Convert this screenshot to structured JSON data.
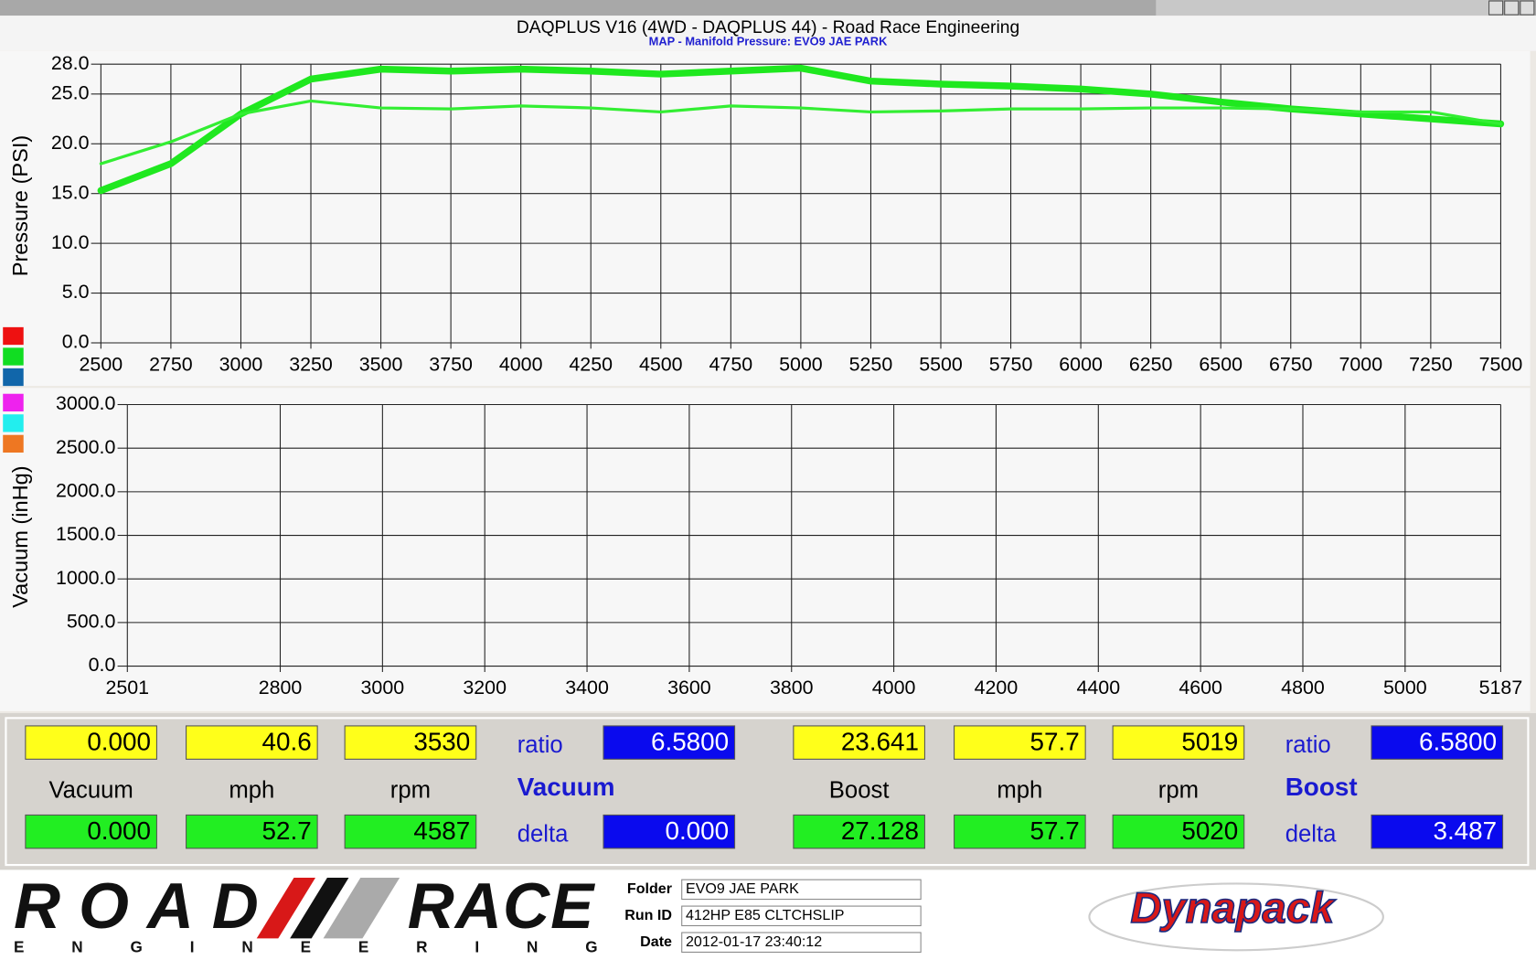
{
  "chart_data": [
    {
      "type": "line",
      "title": "DAQPLUS V16 (4WD - DAQPLUS 44) - Road Race Engineering",
      "subtitle": "MAP - Manifold Pressure: EVO9 JAE PARK",
      "y_label": "Pressure (PSI)",
      "x": [
        2500,
        2750,
        3000,
        3250,
        3500,
        3750,
        4000,
        4250,
        4500,
        4750,
        5000,
        5250,
        5500,
        5750,
        6000,
        6250,
        6500,
        6750,
        7000,
        7250,
        7500
      ],
      "series": [
        {
          "color": "#1fe81f",
          "values": [
            15.3,
            18,
            23,
            26.5,
            27.5,
            27.3,
            27.5,
            27.3,
            27,
            27.3,
            27.6,
            26.3,
            26,
            25.8,
            25.5,
            25,
            24.2,
            23.5,
            23,
            22.5,
            22
          ]
        },
        {
          "color": "#33ee33",
          "values": [
            18,
            20.2,
            23,
            24.3,
            23.6,
            23.5,
            23.8,
            23.6,
            23.2,
            23.8,
            23.6,
            23.2,
            23.3,
            23.5,
            23.5,
            23.6,
            23.6,
            23.5,
            23.2,
            23.2,
            22
          ]
        }
      ],
      "xlim": [
        2500,
        7500
      ],
      "xticks": [
        2500,
        2750,
        3000,
        3250,
        3500,
        3750,
        4000,
        4250,
        4500,
        4750,
        5000,
        5250,
        5500,
        5750,
        6000,
        6250,
        6500,
        6750,
        7000,
        7250,
        7500
      ],
      "ylim": [
        0,
        28
      ],
      "yticks": [
        {
          "value": 0,
          "label": "0.0"
        },
        {
          "value": 5,
          "label": "5.0"
        },
        {
          "value": 10,
          "label": "10.0"
        },
        {
          "value": 15,
          "label": "15.0"
        },
        {
          "value": 20,
          "label": "20.0"
        },
        {
          "value": 25,
          "label": "25.0"
        },
        {
          "value": 28,
          "label": "28.0"
        }
      ],
      "grid": true
    },
    {
      "type": "line",
      "y_label": "Vacuum (inHg)",
      "xlim": [
        2501,
        5187
      ],
      "xticks": [
        2501,
        2800,
        3000,
        3200,
        3400,
        3600,
        3800,
        4000,
        4200,
        4400,
        4600,
        4800,
        5000,
        5187
      ],
      "ylim": [
        0,
        3000
      ],
      "yticks": [
        {
          "value": 0,
          "label": "0.0"
        },
        {
          "value": 500,
          "label": "500.0"
        },
        {
          "value": 1000,
          "label": "1000.0"
        },
        {
          "value": 1500,
          "label": "1500.0"
        },
        {
          "value": 2000,
          "label": "2000.0"
        },
        {
          "value": 2500,
          "label": "2500.0"
        },
        {
          "value": 3000,
          "label": "3000.0"
        }
      ],
      "grid": true
    }
  ],
  "panel": {
    "left": {
      "top": [
        "0.000",
        "40.6",
        "3530"
      ],
      "ratio_label": "ratio",
      "ratio": "6.5800",
      "labels": [
        "Vacuum",
        "mph",
        "rpm"
      ],
      "heading": "Vacuum",
      "bottom": [
        "0.000",
        "52.7",
        "4587"
      ],
      "delta_label": "delta",
      "delta": "0.000"
    },
    "right": {
      "top": [
        "23.641",
        "57.7",
        "5019"
      ],
      "ratio_label": "ratio",
      "ratio": "6.5800",
      "labels": [
        "Boost",
        "mph",
        "rpm"
      ],
      "heading": "Boost",
      "bottom": [
        "27.128",
        "57.7",
        "5020"
      ],
      "delta_label": "delta",
      "delta": "3.487"
    }
  },
  "footer": {
    "logo": {
      "top_left": "ROAD",
      "top_right": "RACE",
      "bottom": "E N G I N E E R I N G"
    },
    "brand": "Dynapack",
    "fields": [
      {
        "label": "Folder",
        "value": "EVO9 JAE PARK"
      },
      {
        "label": "Run ID",
        "value": "412HP E85 CLTCHSLIP"
      },
      {
        "label": "Date",
        "value": "2012-01-17 23:40:12"
      }
    ]
  }
}
